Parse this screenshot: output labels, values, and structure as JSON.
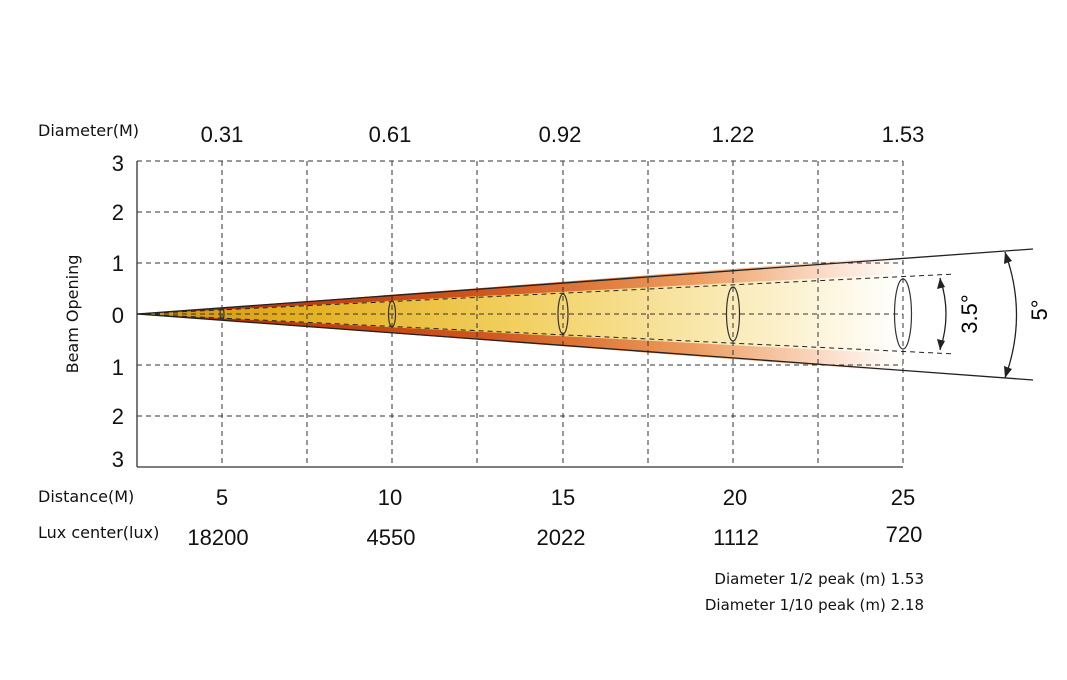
{
  "labels": {
    "diameter_row": "Diameter(M)",
    "distance_row": "Distance(M)",
    "lux_row": "Lux center(lux)",
    "y_axis": "Beam Opening"
  },
  "diameters": [
    "0.31",
    "0.61",
    "0.92",
    "1.22",
    "1.53"
  ],
  "distances": [
    "5",
    "10",
    "15",
    "20",
    "25"
  ],
  "lux": [
    "18200",
    "4550",
    "2022",
    "1112",
    "720"
  ],
  "y_ticks": [
    "3",
    "2",
    "1",
    "0",
    "1",
    "2",
    "3"
  ],
  "angles": {
    "half_peak": "3.5°",
    "tenth_peak": "5°"
  },
  "notes": {
    "half_peak": "Diameter 1/2 peak (m) 1.53",
    "tenth_peak": "Diameter 1/10 peak (m) 2.18"
  },
  "colors": {
    "outer_beam": "#c8401a",
    "inner_beam": "#e8b020",
    "grid": "#333333"
  }
}
